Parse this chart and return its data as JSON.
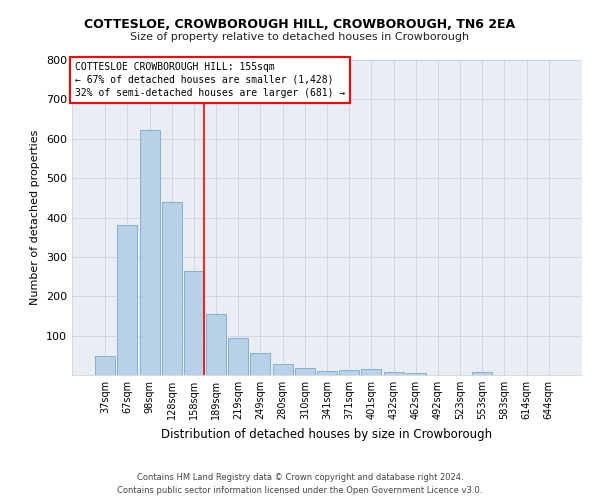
{
  "title": "COTTESLOE, CROWBOROUGH HILL, CROWBOROUGH, TN6 2EA",
  "subtitle": "Size of property relative to detached houses in Crowborough",
  "xlabel": "Distribution of detached houses by size in Crowborough",
  "ylabel": "Number of detached properties",
  "categories": [
    "37sqm",
    "67sqm",
    "98sqm",
    "128sqm",
    "158sqm",
    "189sqm",
    "219sqm",
    "249sqm",
    "280sqm",
    "310sqm",
    "341sqm",
    "371sqm",
    "401sqm",
    "432sqm",
    "462sqm",
    "492sqm",
    "523sqm",
    "553sqm",
    "583sqm",
    "614sqm",
    "644sqm"
  ],
  "values": [
    47,
    382,
    622,
    440,
    265,
    155,
    95,
    55,
    28,
    18,
    11,
    13,
    14,
    8,
    5,
    0,
    0,
    7,
    0,
    0,
    0
  ],
  "bar_color": "#b8d0e8",
  "bar_edge_color": "#7aaac8",
  "background_color": "#e8eef4",
  "red_line_index": 4,
  "annotation_title": "COTTESLOE CROWBOROUGH HILL: 155sqm",
  "annotation_line2": "← 67% of detached houses are smaller (1,428)",
  "annotation_line3": "32% of semi-detached houses are larger (681) →",
  "ylim": [
    0,
    800
  ],
  "yticks": [
    0,
    100,
    200,
    300,
    400,
    500,
    600,
    700,
    800
  ],
  "footer_line1": "Contains HM Land Registry data © Crown copyright and database right 2024.",
  "footer_line2": "Contains public sector information licensed under the Open Government Licence v3.0."
}
